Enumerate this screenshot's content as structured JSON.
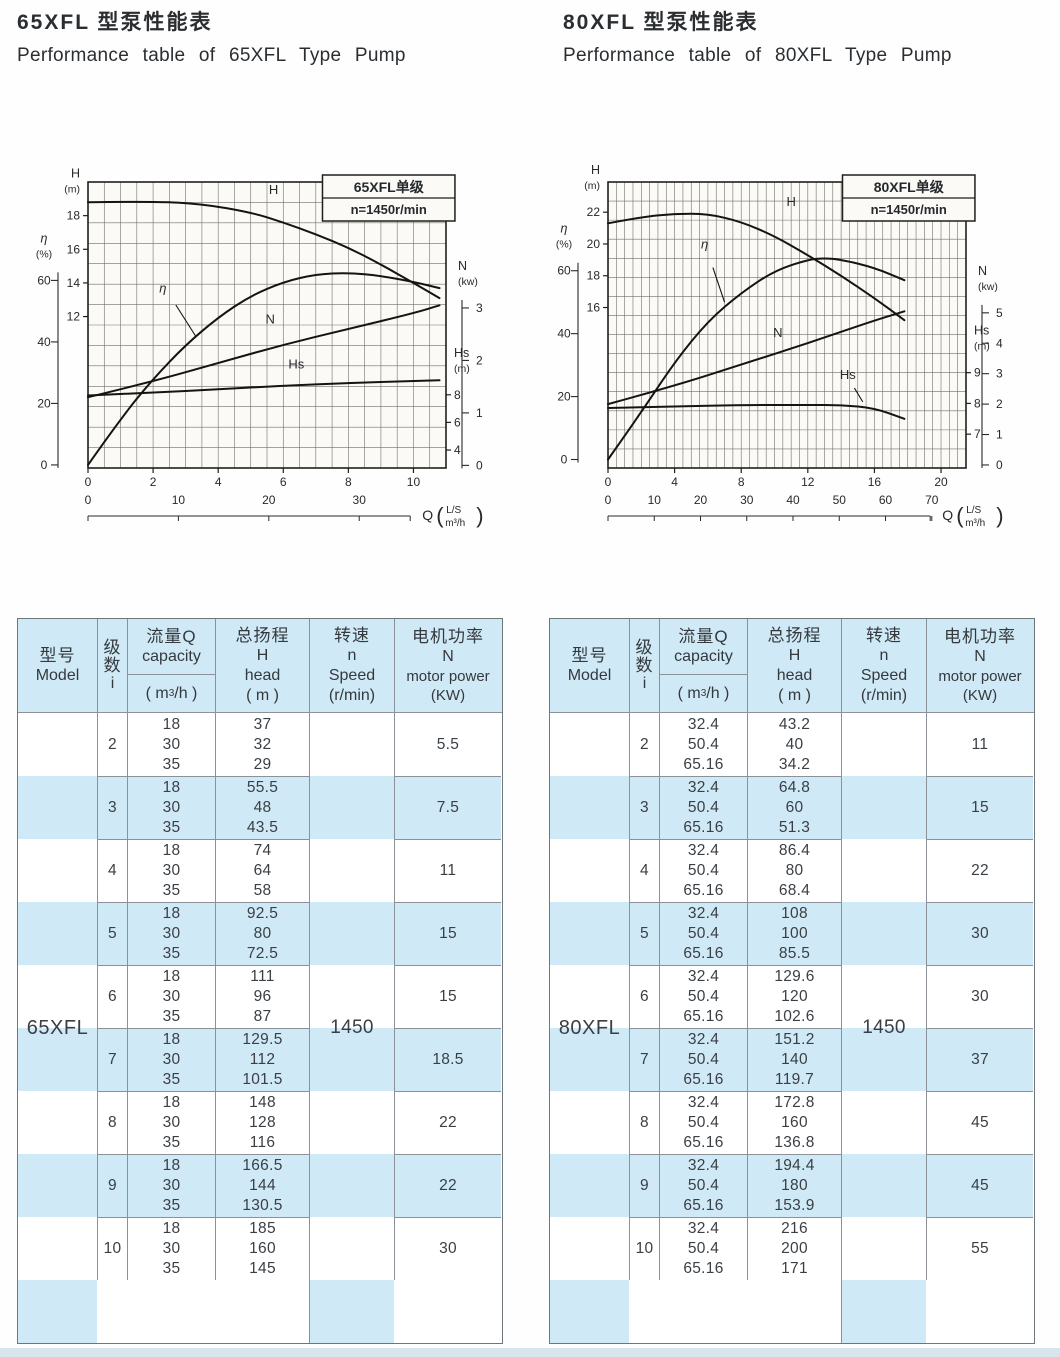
{
  "left": {
    "title_zh": "65XFL 型泵性能表",
    "title_en": "Performance table of 65XFL Type Pump",
    "model": "65XFL",
    "speed": "1450",
    "rows": [
      {
        "i": "2",
        "q": [
          "18",
          "30",
          "35"
        ],
        "h": [
          "37",
          "32",
          "29"
        ],
        "n": "5.5"
      },
      {
        "i": "3",
        "q": [
          "18",
          "30",
          "35"
        ],
        "h": [
          "55.5",
          "48",
          "43.5"
        ],
        "n": "7.5"
      },
      {
        "i": "4",
        "q": [
          "18",
          "30",
          "35"
        ],
        "h": [
          "74",
          "64",
          "58"
        ],
        "n": "11"
      },
      {
        "i": "5",
        "q": [
          "18",
          "30",
          "35"
        ],
        "h": [
          "92.5",
          "80",
          "72.5"
        ],
        "n": "15"
      },
      {
        "i": "6",
        "q": [
          "18",
          "30",
          "35"
        ],
        "h": [
          "111",
          "96",
          "87"
        ],
        "n": "15"
      },
      {
        "i": "7",
        "q": [
          "18",
          "30",
          "35"
        ],
        "h": [
          "129.5",
          "112",
          "101.5"
        ],
        "n": "18.5"
      },
      {
        "i": "8",
        "q": [
          "18",
          "30",
          "35"
        ],
        "h": [
          "148",
          "128",
          "116"
        ],
        "n": "22"
      },
      {
        "i": "9",
        "q": [
          "18",
          "30",
          "35"
        ],
        "h": [
          "166.5",
          "144",
          "130.5"
        ],
        "n": "22"
      },
      {
        "i": "10",
        "q": [
          "18",
          "30",
          "35"
        ],
        "h": [
          "185",
          "160",
          "145"
        ],
        "n": "30"
      }
    ]
  },
  "right": {
    "title_zh": "80XFL 型泵性能表",
    "title_en": "Performance table of 80XFL Type Pump",
    "model": "80XFL",
    "speed": "1450",
    "rows": [
      {
        "i": "2",
        "q": [
          "32.4",
          "50.4",
          "65.16"
        ],
        "h": [
          "43.2",
          "40",
          "34.2"
        ],
        "n": "11"
      },
      {
        "i": "3",
        "q": [
          "32.4",
          "50.4",
          "65.16"
        ],
        "h": [
          "64.8",
          "60",
          "51.3"
        ],
        "n": "15"
      },
      {
        "i": "4",
        "q": [
          "32.4",
          "50.4",
          "65.16"
        ],
        "h": [
          "86.4",
          "80",
          "68.4"
        ],
        "n": "22"
      },
      {
        "i": "5",
        "q": [
          "32.4",
          "50.4",
          "65.16"
        ],
        "h": [
          "108",
          "100",
          "85.5"
        ],
        "n": "30"
      },
      {
        "i": "6",
        "q": [
          "32.4",
          "50.4",
          "65.16"
        ],
        "h": [
          "129.6",
          "120",
          "102.6"
        ],
        "n": "30"
      },
      {
        "i": "7",
        "q": [
          "32.4",
          "50.4",
          "65.16"
        ],
        "h": [
          "151.2",
          "140",
          "119.7"
        ],
        "n": "37"
      },
      {
        "i": "8",
        "q": [
          "32.4",
          "50.4",
          "65.16"
        ],
        "h": [
          "172.8",
          "160",
          "136.8"
        ],
        "n": "45"
      },
      {
        "i": "9",
        "q": [
          "32.4",
          "50.4",
          "65.16"
        ],
        "h": [
          "194.4",
          "180",
          "153.9"
        ],
        "n": "45"
      },
      {
        "i": "10",
        "q": [
          "32.4",
          "50.4",
          "65.16"
        ],
        "h": [
          "216",
          "200",
          "171"
        ],
        "n": "55"
      }
    ]
  },
  "table_header": {
    "model_zh": "型号",
    "model_en": "Model",
    "stage_c1": "级",
    "stage_c2": "数",
    "stage_en": "i",
    "cap_zh": "流量Q",
    "cap_en": "capacity",
    "cap_unit_pre": "( m",
    "cap_unit_sup": "3",
    "cap_unit_suf": "/h )",
    "head_zh": "总扬程",
    "head_sym": "H",
    "head_en": "head",
    "head_unit": "( m )",
    "speed_zh": "转速",
    "speed_sym": "n",
    "speed_en": "Speed",
    "speed_unit": "(r/min)",
    "power_zh": "电机功率",
    "power_sym": "N",
    "power_en": "motor power",
    "power_unit": "(KW)"
  },
  "chart_data": [
    {
      "type": "line",
      "title_box": [
        "65XFL单级",
        "n=1450r/min"
      ],
      "x": {
        "label": "Q",
        "units": [
          "L/S",
          "m³/h"
        ],
        "ticks_ls": [
          0,
          2,
          4,
          6,
          8,
          10
        ],
        "ticks_m3h": [
          0,
          10,
          20,
          30
        ],
        "max": 11,
        "grid_step": 0.5
      },
      "grid_rows": 14,
      "axes": {
        "H": {
          "side": "li",
          "title": [
            "H",
            "(m)"
          ],
          "ticks": [
            18,
            16,
            14,
            12
          ],
          "range": [
            3,
            20
          ]
        },
        "eta": {
          "side": "lo",
          "title": [
            "η",
            "(%)"
          ],
          "ticks": [
            60,
            40,
            20,
            0
          ],
          "range": [
            -1,
            92
          ],
          "bracket": true
        },
        "Hs": {
          "side": "ri",
          "title": [
            "Hs",
            "(m)"
          ],
          "ticks": [
            8,
            6,
            4
          ],
          "range": [
            2.7,
            23.4
          ]
        },
        "N": {
          "side": "ro",
          "title": [
            "N",
            "(kw)"
          ],
          "ticks": [
            3,
            2,
            1,
            0
          ],
          "range": [
            -0.05,
            5.4
          ],
          "bracket": true
        }
      },
      "series": [
        {
          "name": "H",
          "axis": "H",
          "points": [
            [
              0,
              18.8
            ],
            [
              2,
              18.85
            ],
            [
              3.5,
              18.7
            ],
            [
              5,
              18.2
            ],
            [
              6,
              17.6
            ],
            [
              7,
              16.9
            ],
            [
              8,
              16.1
            ],
            [
              9,
              15.1
            ],
            [
              10,
              14.0
            ],
            [
              10.8,
              13.1
            ]
          ],
          "label": {
            "text": "H",
            "x": 5.7,
            "v": 19.3
          }
        },
        {
          "name": "η",
          "axis": "eta",
          "points": [
            [
              0,
              0
            ],
            [
              1,
              15
            ],
            [
              2,
              28
            ],
            [
              3,
              39
            ],
            [
              4,
              48
            ],
            [
              5,
              55
            ],
            [
              6,
              59.5
            ],
            [
              7,
              62
            ],
            [
              8,
              62.5
            ],
            [
              9,
              61.5
            ],
            [
              10,
              59.5
            ],
            [
              10.8,
              57.5
            ]
          ],
          "label": {
            "text": "η",
            "x": 2.3,
            "v": 56
          },
          "pointer": [
            [
              2.7,
              52
            ],
            [
              3.3,
              42
            ]
          ]
        },
        {
          "name": "N",
          "axis": "N",
          "points": [
            [
              0,
              1.3
            ],
            [
              2,
              1.6
            ],
            [
              4,
              1.95
            ],
            [
              6,
              2.3
            ],
            [
              8,
              2.6
            ],
            [
              10,
              2.9
            ],
            [
              10.8,
              3.05
            ]
          ],
          "label": {
            "text": "N",
            "x": 5.6,
            "v": 2.7
          }
        },
        {
          "name": "Hs",
          "axis": "Hs",
          "points": [
            [
              0,
              7.95
            ],
            [
              2,
              8.15
            ],
            [
              4,
              8.4
            ],
            [
              6,
              8.65
            ],
            [
              8,
              8.85
            ],
            [
              10,
              9.0
            ],
            [
              10.8,
              9.05
            ]
          ],
          "label": {
            "text": "Hs",
            "x": 6.4,
            "v": 9.9
          }
        }
      ]
    },
    {
      "type": "line",
      "title_box": [
        "80XFL单级",
        "n=1450r/min"
      ],
      "x": {
        "label": "Q",
        "units": [
          "L/S",
          "m³/h"
        ],
        "ticks_ls": [
          0,
          4,
          8,
          12,
          16,
          20
        ],
        "ticks_m3h": [
          0,
          10,
          20,
          30,
          40,
          50,
          60,
          70
        ],
        "max": 21.5,
        "grid_step": 0.5
      },
      "grid_rows": 15,
      "axes": {
        "H": {
          "side": "li",
          "title": [
            "H",
            "(m)"
          ],
          "ticks": [
            22,
            20,
            18,
            16
          ],
          "range": [
            5.9,
            23.9
          ]
        },
        "eta": {
          "side": "lo",
          "title": [
            "η",
            "(%)"
          ],
          "ticks": [
            60,
            40,
            20,
            0
          ],
          "range": [
            -2.7,
            88.2
          ],
          "bracket": true
        },
        "Hs": {
          "side": "ri",
          "title": [
            "Hs",
            "(m)"
          ],
          "ticks": [
            9,
            8,
            7
          ],
          "range": [
            5.9,
            15.2
          ]
        },
        "N": {
          "side": "ro",
          "title": [
            "N",
            "(kw)"
          ],
          "ticks": [
            5,
            4,
            3,
            2,
            1,
            0
          ],
          "range": [
            -0.1,
            9.3
          ],
          "bracket": true
        }
      },
      "series": [
        {
          "name": "H",
          "axis": "H",
          "points": [
            [
              0,
              21.3
            ],
            [
              2,
              21.7
            ],
            [
              4,
              21.9
            ],
            [
              6,
              21.9
            ],
            [
              8,
              21.4
            ],
            [
              10,
              20.5
            ],
            [
              12,
              19.3
            ],
            [
              14,
              18.0
            ],
            [
              16,
              16.6
            ],
            [
              17.8,
              15.2
            ]
          ],
          "label": {
            "text": "H",
            "x": 11.0,
            "v": 22.4
          }
        },
        {
          "name": "η",
          "axis": "eta",
          "points": [
            [
              0,
              0
            ],
            [
              2,
              15
            ],
            [
              4,
              31
            ],
            [
              6,
              44
            ],
            [
              8,
              53
            ],
            [
              10,
              60
            ],
            [
              12,
              63.5
            ],
            [
              13,
              64
            ],
            [
              14,
              63.5
            ],
            [
              16,
              61
            ],
            [
              17.8,
              57
            ]
          ],
          "label": {
            "text": "η",
            "x": 5.8,
            "v": 67
          },
          "pointer": [
            [
              6.3,
              61
            ],
            [
              7.0,
              50
            ]
          ]
        },
        {
          "name": "N",
          "axis": "N",
          "points": [
            [
              0,
              2.0
            ],
            [
              4,
              2.6
            ],
            [
              8,
              3.3
            ],
            [
              12,
              4.0
            ],
            [
              16,
              4.75
            ],
            [
              17.8,
              5.05
            ]
          ],
          "label": {
            "text": "N",
            "x": 10.2,
            "v": 4.2
          }
        },
        {
          "name": "Hs",
          "axis": "Hs",
          "points": [
            [
              0,
              7.85
            ],
            [
              4,
              7.9
            ],
            [
              8,
              7.95
            ],
            [
              12,
              7.95
            ],
            [
              14,
              7.95
            ],
            [
              16,
              7.85
            ],
            [
              17.8,
              7.5
            ]
          ],
          "label": {
            "text": "Hs",
            "x": 14.4,
            "v": 8.8
          },
          "pointer": [
            [
              14.8,
              8.5
            ],
            [
              15.3,
              8.05
            ]
          ]
        }
      ]
    }
  ]
}
